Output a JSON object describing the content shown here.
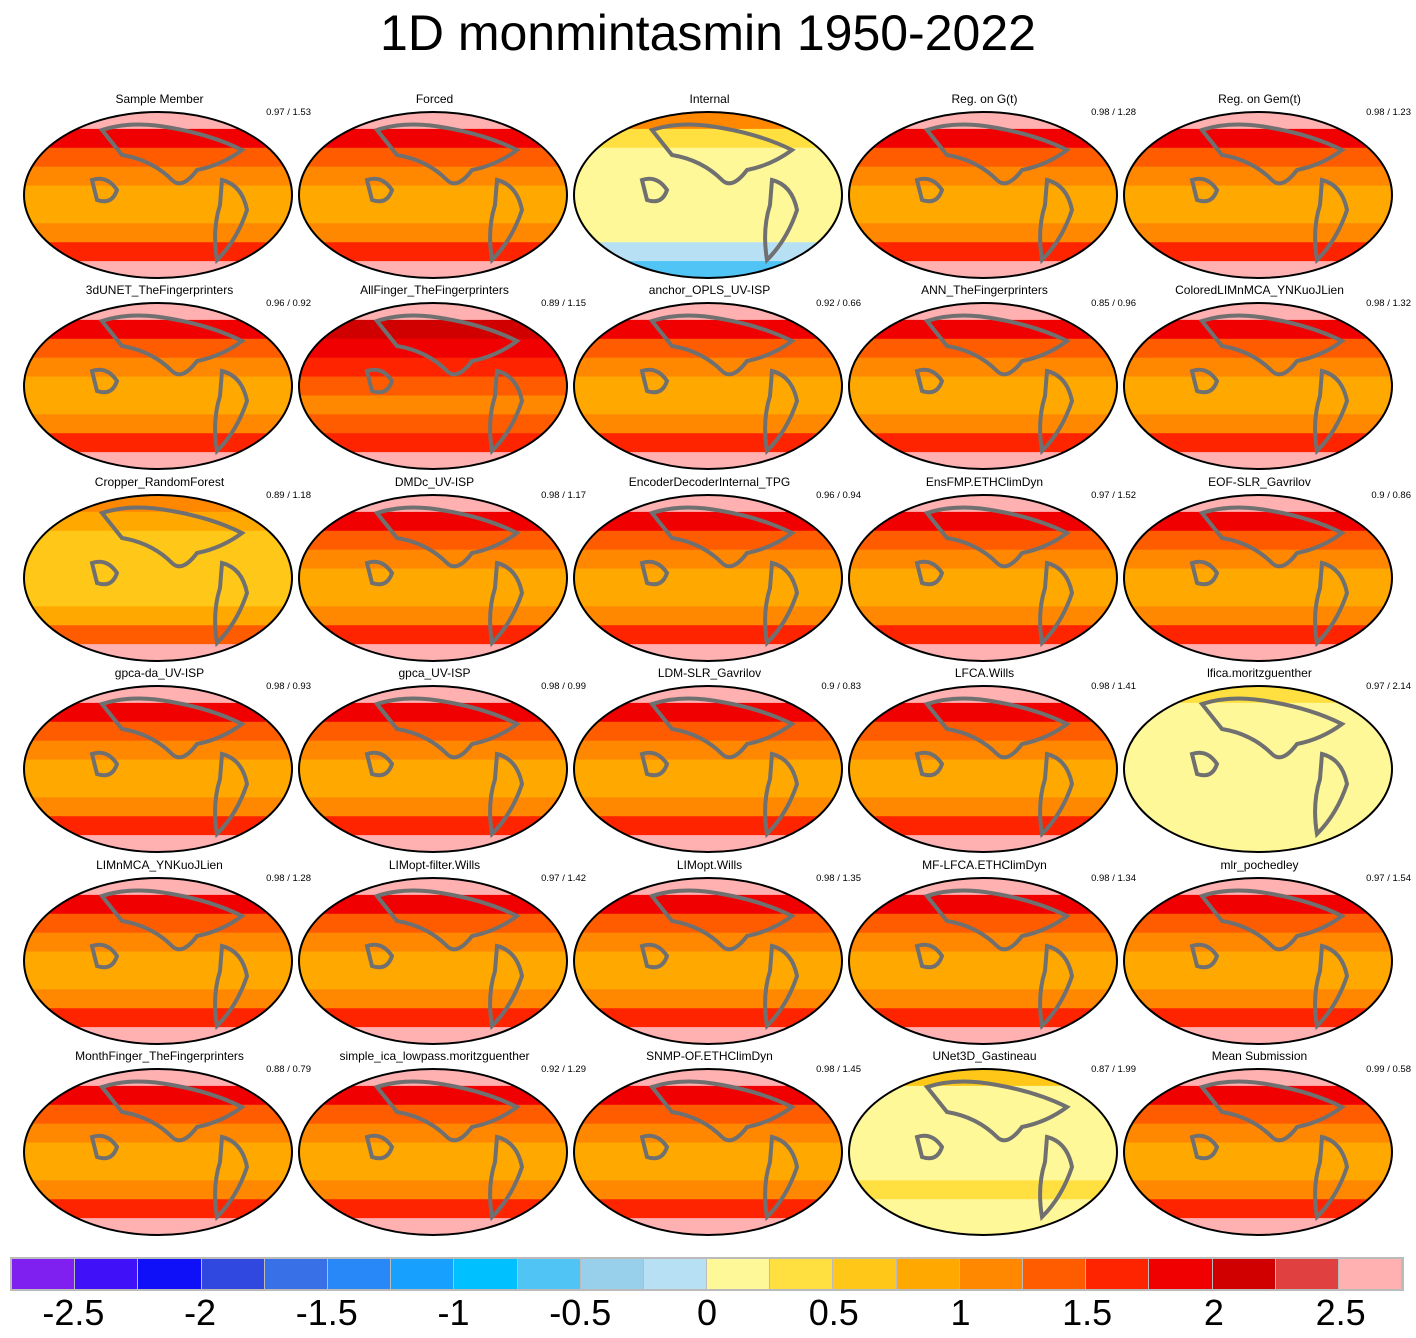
{
  "chart_data": {
    "type": "heatmap",
    "title": "1D monmintasmin 1950-2022",
    "panels": [
      {
        "name": "Sample Member",
        "score": "0.97 / 1.53",
        "style": "warm"
      },
      {
        "name": "Forced",
        "score": "",
        "style": "warm"
      },
      {
        "name": "Internal",
        "score": "",
        "style": "internal"
      },
      {
        "name": "Reg. on G(t)",
        "score": "0.98 / 1.28",
        "style": "warm"
      },
      {
        "name": "Reg. on Gem(t)",
        "score": "0.98 / 1.23",
        "style": "warm"
      },
      {
        "name": "3dUNET_TheFingerprinters",
        "score": "0.96 / 0.92",
        "style": "warm"
      },
      {
        "name": "AllFinger_TheFingerprinters",
        "score": "0.89 / 1.15",
        "style": "hot"
      },
      {
        "name": "anchor_OPLS_UV-ISP",
        "score": "0.92 / 0.66",
        "style": "warm"
      },
      {
        "name": "ANN_TheFingerprinters",
        "score": "0.85 / 0.96",
        "style": "warm"
      },
      {
        "name": "ColoredLIMnMCA_YNKuoJLien",
        "score": "0.98 / 1.32",
        "style": "warm"
      },
      {
        "name": "Cropper_RandomForest",
        "score": "0.89 / 1.18",
        "style": "mild"
      },
      {
        "name": "DMDc_UV-ISP",
        "score": "0.98 / 1.17",
        "style": "warm"
      },
      {
        "name": "EncoderDecoderInternal_TPG",
        "score": "0.96 / 0.94",
        "style": "warm"
      },
      {
        "name": "EnsFMP.ETHClimDyn",
        "score": "0.97 / 1.52",
        "style": "warm"
      },
      {
        "name": "EOF-SLR_Gavrilov",
        "score": "0.9 / 0.86",
        "style": "warm"
      },
      {
        "name": "gpca-da_UV-ISP",
        "score": "0.98 / 0.93",
        "style": "warm"
      },
      {
        "name": "gpca_UV-ISP",
        "score": "0.98 / 0.99",
        "style": "warm"
      },
      {
        "name": "LDM-SLR_Gavrilov",
        "score": "0.9 / 0.83",
        "style": "warm"
      },
      {
        "name": "LFCA.Wills",
        "score": "0.98 / 1.41",
        "style": "warm"
      },
      {
        "name": "lfica.moritzguenther",
        "score": "0.97 / 2.14",
        "style": "pale"
      },
      {
        "name": "LIMnMCA_YNKuoJLien",
        "score": "0.98 / 1.28",
        "style": "warm"
      },
      {
        "name": "LIMopt-filter.Wills",
        "score": "0.97 / 1.42",
        "style": "warm"
      },
      {
        "name": "LIMopt.Wills",
        "score": "0.98 / 1.35",
        "style": "warm"
      },
      {
        "name": "MF-LFCA.ETHClimDyn",
        "score": "0.98 / 1.34",
        "style": "warm"
      },
      {
        "name": "mlr_pochedley",
        "score": "0.97 / 1.54",
        "style": "warm"
      },
      {
        "name": "MonthFinger_TheFingerprinters",
        "score": "0.88 / 0.79",
        "style": "warm"
      },
      {
        "name": "simple_ica_lowpass.moritzguenther",
        "score": "0.92 / 1.29",
        "style": "warm"
      },
      {
        "name": "SNMP-OF.ETHClimDyn",
        "score": "0.98 / 1.45",
        "style": "warm"
      },
      {
        "name": "UNet3D_Gastineau",
        "score": "0.87 / 1.99",
        "style": "pale2"
      },
      {
        "name": "Mean Submission",
        "score": "0.99 / 0.58",
        "style": "warm"
      }
    ],
    "colorbar": {
      "colors": [
        "#8020f0",
        "#4010f8",
        "#1010f8",
        "#3048e0",
        "#3870e8",
        "#2888f8",
        "#18a0ff",
        "#00c0ff",
        "#50c4f4",
        "#98d0ec",
        "#b8e0f4",
        "#fff898",
        "#ffe040",
        "#ffc818",
        "#ffa800",
        "#ff8800",
        "#ff5c00",
        "#ff2400",
        "#f00000",
        "#d00000",
        "#e04040",
        "#ffb0b0"
      ],
      "ticks": [
        "-2.5",
        "-2",
        "-1.5",
        "-1",
        "-0.5",
        "0",
        "0.5",
        "1",
        "1.5",
        "2",
        "2.5"
      ],
      "tick_values": [
        -2.5,
        -2,
        -1.5,
        -1,
        -0.5,
        0,
        0.5,
        1,
        1.5,
        2,
        2.5
      ],
      "range": [
        -2.75,
        2.75
      ]
    }
  }
}
